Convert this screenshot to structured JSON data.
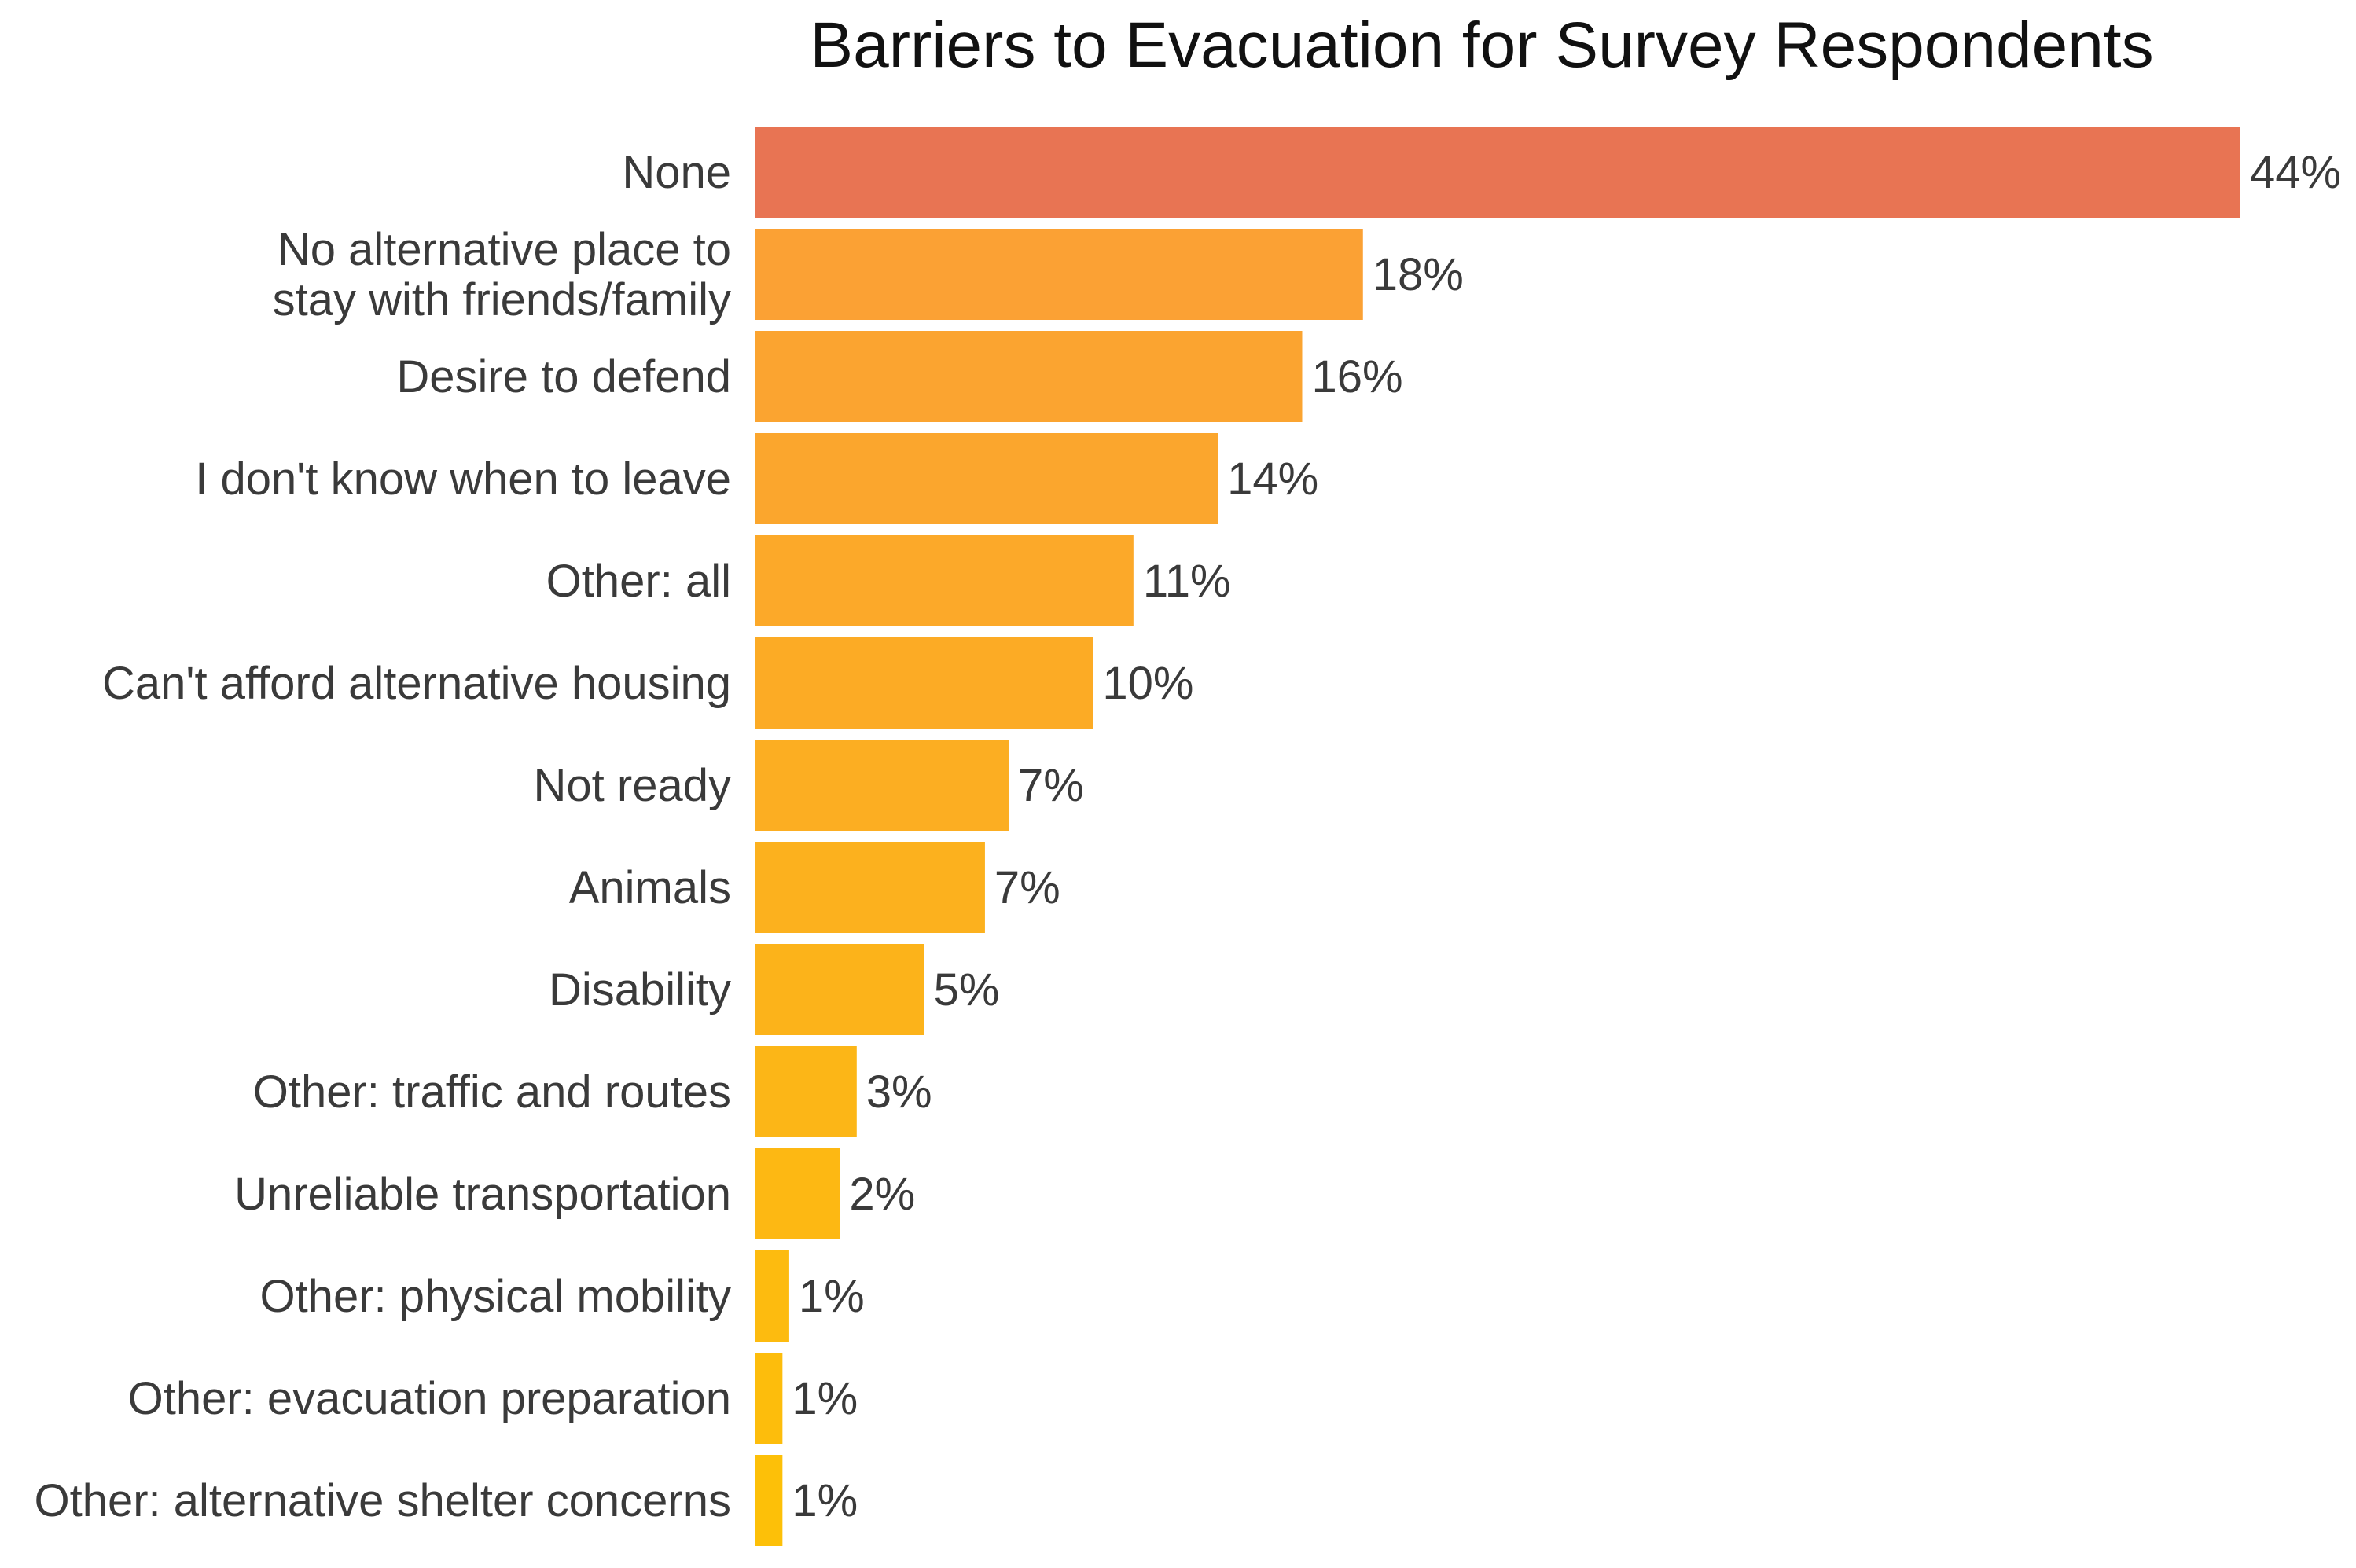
{
  "chart_data": {
    "type": "bar",
    "orientation": "horizontal",
    "title": "Barriers to Evacuation for Survey Respondents",
    "xlabel": "",
    "ylabel": "",
    "grid": false,
    "legend": "none",
    "xlim": [
      0,
      44
    ],
    "value_suffix": "%",
    "categories": [
      [
        "None"
      ],
      [
        "No alternative place to",
        "stay with friends/family"
      ],
      [
        "Desire to defend"
      ],
      [
        "I don't know when to leave"
      ],
      [
        "Other: all"
      ],
      [
        "Can't afford alternative housing"
      ],
      [
        "Not ready"
      ],
      [
        "Animals"
      ],
      [
        "Disability"
      ],
      [
        "Other: traffic and routes"
      ],
      [
        "Unreliable transportation"
      ],
      [
        "Other: physical mobility"
      ],
      [
        "Other: evacuation preparation"
      ],
      [
        "Other: alternative shelter concerns"
      ]
    ],
    "values": [
      44,
      18,
      16,
      14,
      11,
      10,
      7,
      7,
      5,
      3,
      2,
      1,
      1,
      1
    ],
    "bar_values": [
      44,
      18,
      16.2,
      13.7,
      11.2,
      10,
      7.5,
      6.8,
      5,
      3,
      2.5,
      1,
      0.8,
      0.8
    ],
    "colors": {
      "highlight": "#E87453",
      "gradient_start": "#FBA134",
      "gradient_end": "#FDC008"
    }
  }
}
